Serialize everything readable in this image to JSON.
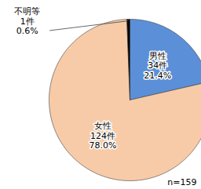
{
  "chart_data": {
    "type": "pie",
    "categories": [
      "男性",
      "女性",
      "不明等"
    ],
    "values": [
      21.4,
      78.0,
      0.6
    ],
    "value_labels": [
      "21.4%",
      "78.0%",
      "0.6%"
    ],
    "count_labels": [
      "34件",
      "124件",
      "1件"
    ],
    "colors": [
      "#5b8fd8",
      "#f7cba8",
      "#000000"
    ],
    "annotation": "n=159",
    "data_labels": true
  }
}
